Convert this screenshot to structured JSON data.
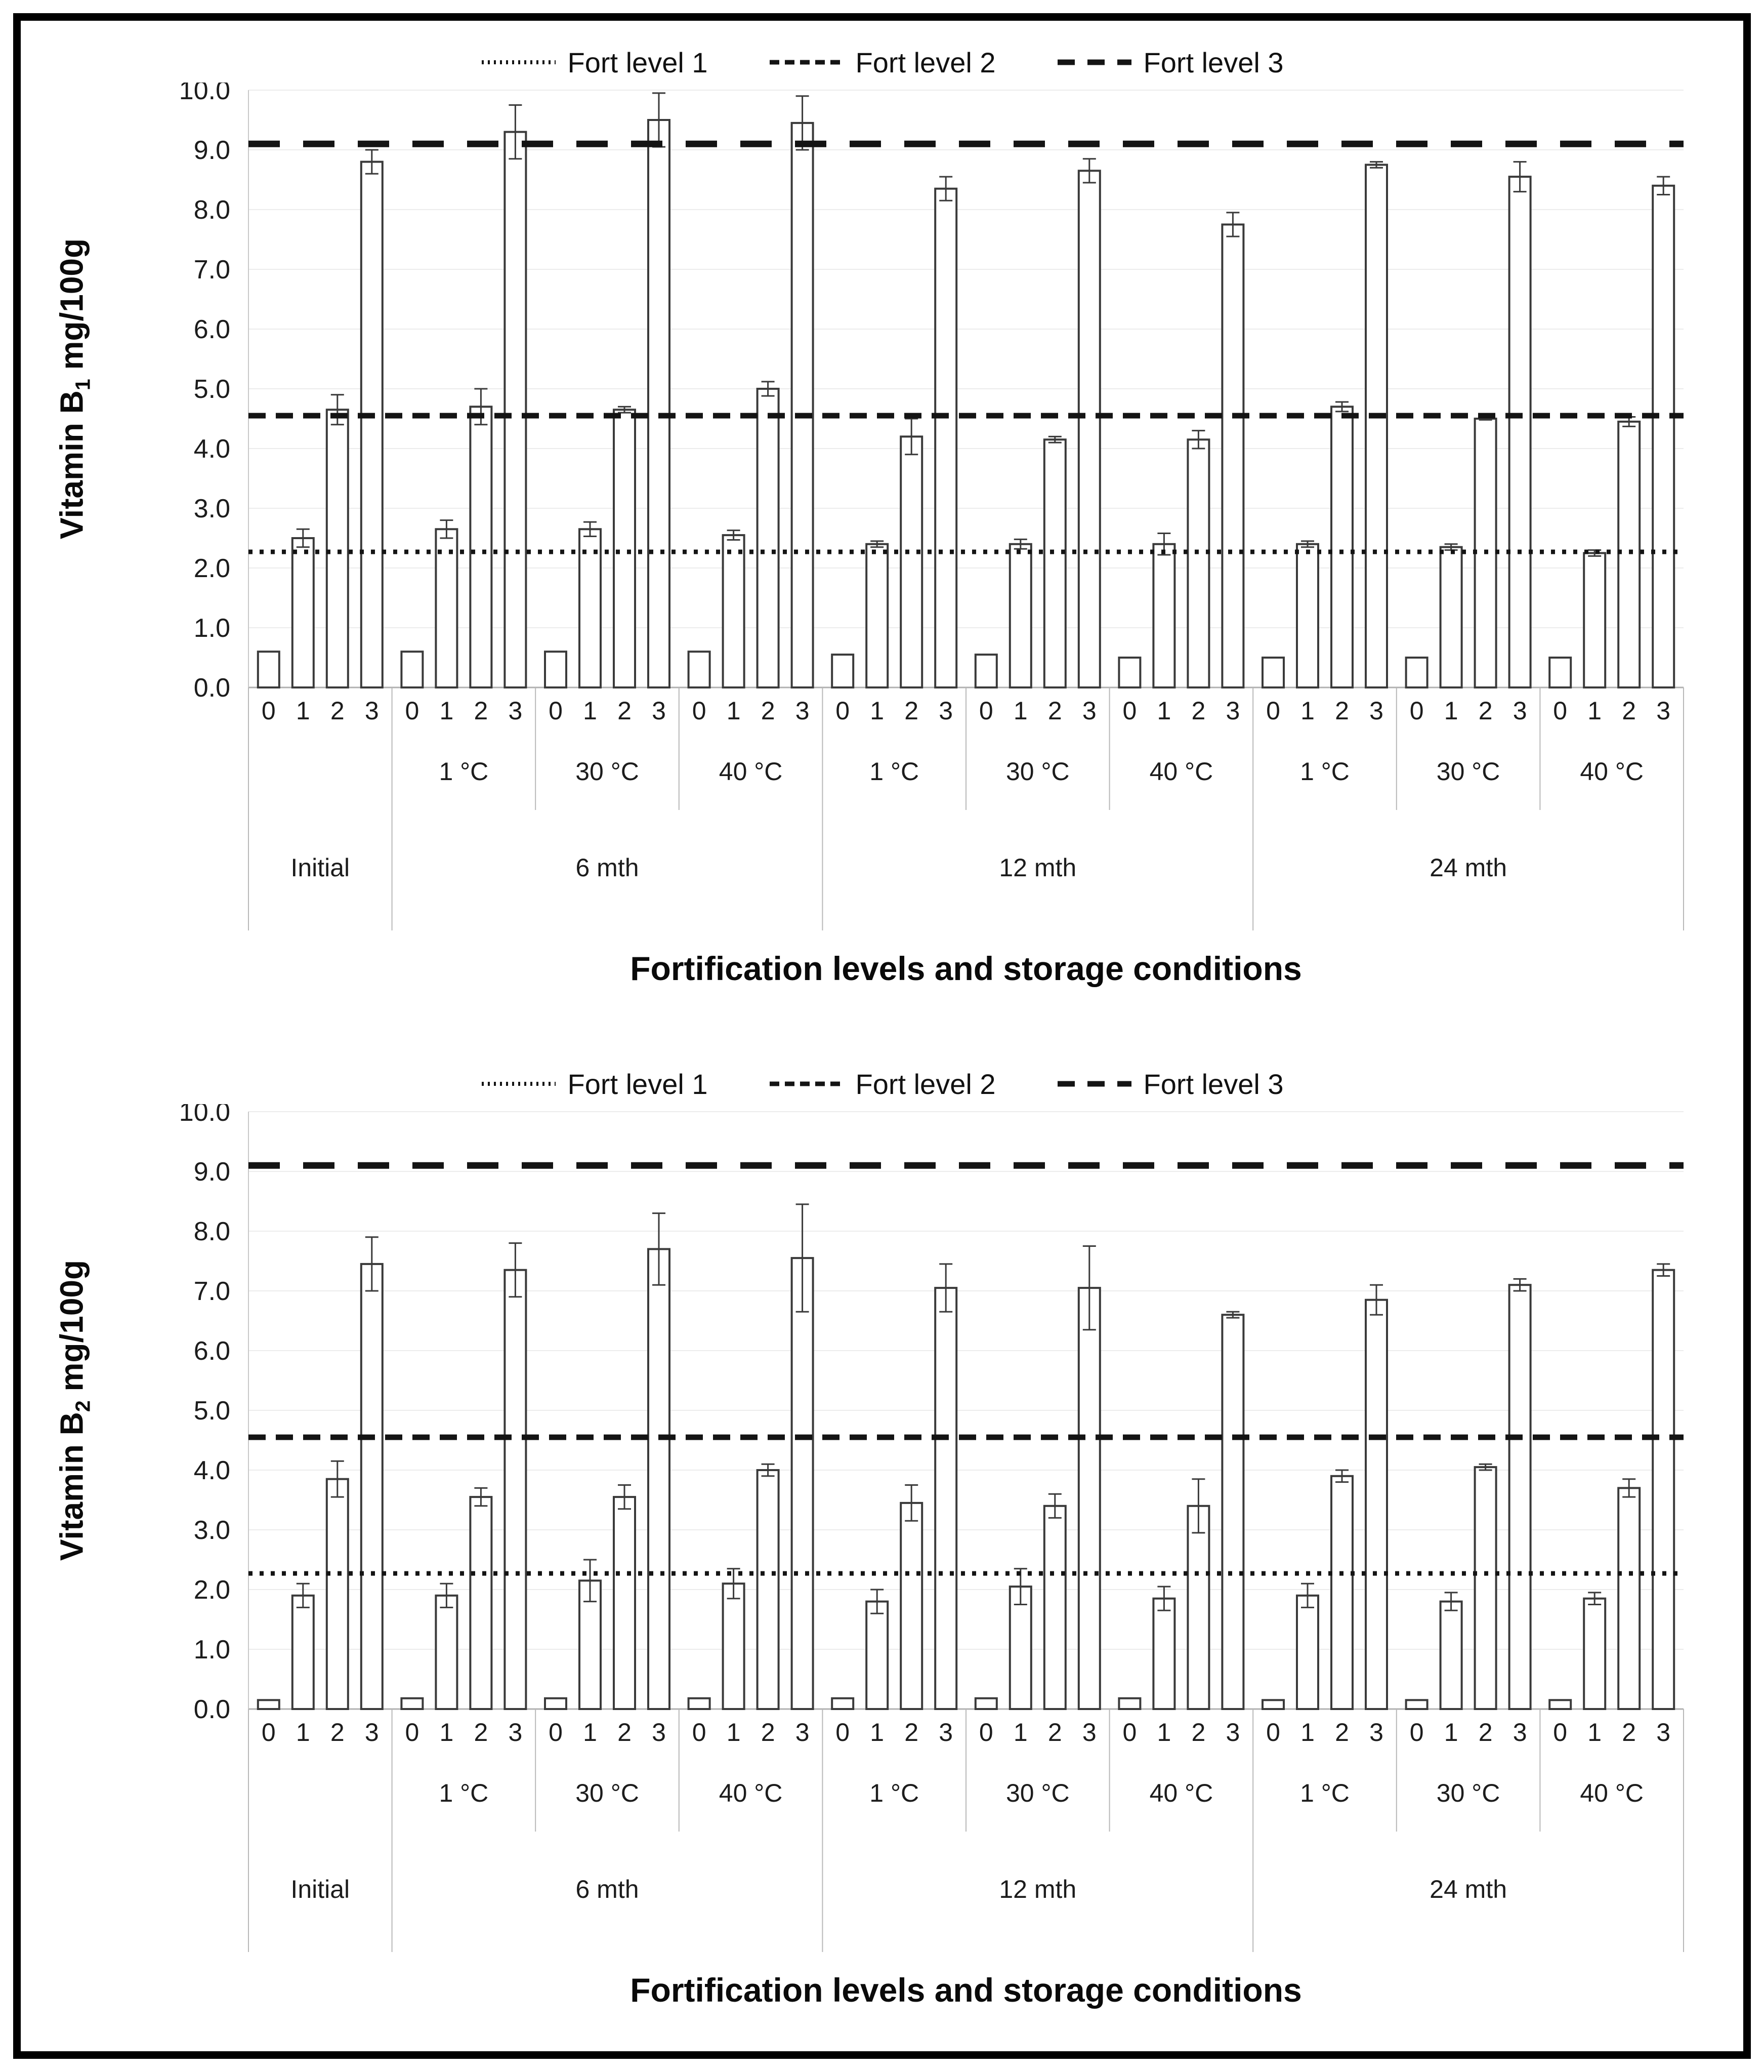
{
  "legend": {
    "items": [
      {
        "label": "Fort level 1",
        "style": "dotted"
      },
      {
        "label": "Fort level 2",
        "style": "dashed"
      },
      {
        "label": "Fort level 3",
        "style": "long-dash"
      }
    ]
  },
  "chart_data": [
    {
      "type": "bar",
      "ylabel": {
        "prefix": "Vitamin B",
        "sub": "1",
        "suffix": " mg/100g"
      },
      "xlabel": "Fortification levels and storage conditions",
      "ylim": [
        0,
        10
      ],
      "ytick_step": 1,
      "yticks": [
        "0.0",
        "1.0",
        "2.0",
        "3.0",
        "4.0",
        "5.0",
        "6.0",
        "7.0",
        "8.0",
        "9.0",
        "10.0"
      ],
      "grid": true,
      "legend_position": "top-center",
      "bar_labels": [
        "0",
        "1",
        "2",
        "3"
      ],
      "ref_lines": [
        {
          "label": "Fort level 1",
          "value": 2.27,
          "style": "dotted"
        },
        {
          "label": "Fort level 2",
          "value": 4.55,
          "style": "dashed"
        },
        {
          "label": "Fort level 3",
          "value": 9.1,
          "style": "long-dash"
        }
      ],
      "periods": [
        {
          "label": "Initial",
          "span": 1
        },
        {
          "label": "6 mth",
          "span": 3
        },
        {
          "label": "12 mth",
          "span": 3
        },
        {
          "label": "24 mth",
          "span": 3
        }
      ],
      "groups": [
        {
          "period": "Initial",
          "temp": "",
          "values": [
            0.6,
            2.5,
            4.65,
            8.8
          ],
          "errors": [
            0,
            0.15,
            0.25,
            0.2
          ]
        },
        {
          "period": "6 mth",
          "temp": "1 °C",
          "values": [
            0.6,
            2.65,
            4.7,
            9.3
          ],
          "errors": [
            0,
            0.15,
            0.3,
            0.45
          ]
        },
        {
          "period": "6 mth",
          "temp": "30 °C",
          "values": [
            0.6,
            2.65,
            4.65,
            9.5
          ],
          "errors": [
            0,
            0.12,
            0.05,
            0.45
          ]
        },
        {
          "period": "6 mth",
          "temp": "40 °C",
          "values": [
            0.6,
            2.55,
            5.0,
            9.45
          ],
          "errors": [
            0,
            0.08,
            0.12,
            0.45
          ]
        },
        {
          "period": "12 mth",
          "temp": "1 °C",
          "values": [
            0.55,
            2.4,
            4.2,
            8.35
          ],
          "errors": [
            0,
            0.05,
            0.3,
            0.2
          ]
        },
        {
          "period": "12 mth",
          "temp": "30 °C",
          "values": [
            0.55,
            2.4,
            4.15,
            8.65
          ],
          "errors": [
            0,
            0.08,
            0.05,
            0.2
          ]
        },
        {
          "period": "12 mth",
          "temp": "40 °C",
          "values": [
            0.5,
            2.4,
            4.15,
            7.75
          ],
          "errors": [
            0,
            0.18,
            0.15,
            0.2
          ]
        },
        {
          "period": "24 mth",
          "temp": "1 °C",
          "values": [
            0.5,
            2.4,
            4.7,
            8.75
          ],
          "errors": [
            0,
            0.05,
            0.08,
            0.05
          ]
        },
        {
          "period": "24 mth",
          "temp": "30 °C",
          "values": [
            0.5,
            2.35,
            4.5,
            8.55
          ],
          "errors": [
            0,
            0.05,
            0.02,
            0.25
          ]
        },
        {
          "period": "24 mth",
          "temp": "40 °C",
          "values": [
            0.5,
            2.25,
            4.45,
            8.4
          ],
          "errors": [
            0,
            0.05,
            0.08,
            0.15
          ]
        }
      ]
    },
    {
      "type": "bar",
      "ylabel": {
        "prefix": "Vitamin B",
        "sub": "2",
        "suffix": " mg/100g"
      },
      "xlabel": "Fortification levels and storage conditions",
      "ylim": [
        0,
        10
      ],
      "ytick_step": 1,
      "yticks": [
        "0.0",
        "1.0",
        "2.0",
        "3.0",
        "4.0",
        "5.0",
        "6.0",
        "7.0",
        "8.0",
        "9.0",
        "10.0"
      ],
      "grid": true,
      "legend_position": "top-center",
      "bar_labels": [
        "0",
        "1",
        "2",
        "3"
      ],
      "ref_lines": [
        {
          "label": "Fort level 1",
          "value": 2.27,
          "style": "dotted"
        },
        {
          "label": "Fort level 2",
          "value": 4.55,
          "style": "dashed"
        },
        {
          "label": "Fort level 3",
          "value": 9.1,
          "style": "long-dash"
        }
      ],
      "periods": [
        {
          "label": "Initial",
          "span": 1
        },
        {
          "label": "6 mth",
          "span": 3
        },
        {
          "label": "12 mth",
          "span": 3
        },
        {
          "label": "24 mth",
          "span": 3
        }
      ],
      "groups": [
        {
          "period": "Initial",
          "temp": "",
          "values": [
            0.15,
            1.9,
            3.85,
            7.45
          ],
          "errors": [
            0,
            0.2,
            0.3,
            0.45
          ]
        },
        {
          "period": "6 mth",
          "temp": "1 °C",
          "values": [
            0.18,
            1.9,
            3.55,
            7.35
          ],
          "errors": [
            0,
            0.2,
            0.15,
            0.45
          ]
        },
        {
          "period": "6 mth",
          "temp": "30 °C",
          "values": [
            0.18,
            2.15,
            3.55,
            7.7
          ],
          "errors": [
            0,
            0.35,
            0.2,
            0.6
          ]
        },
        {
          "period": "6 mth",
          "temp": "40 °C",
          "values": [
            0.18,
            2.1,
            4.0,
            7.55
          ],
          "errors": [
            0,
            0.25,
            0.1,
            0.9
          ]
        },
        {
          "period": "12 mth",
          "temp": "1 °C",
          "values": [
            0.18,
            1.8,
            3.45,
            7.05
          ],
          "errors": [
            0,
            0.2,
            0.3,
            0.4
          ]
        },
        {
          "period": "12 mth",
          "temp": "30 °C",
          "values": [
            0.18,
            2.05,
            3.4,
            7.05
          ],
          "errors": [
            0,
            0.3,
            0.2,
            0.7
          ]
        },
        {
          "period": "12 mth",
          "temp": "40 °C",
          "values": [
            0.18,
            1.85,
            3.4,
            6.6
          ],
          "errors": [
            0,
            0.2,
            0.45,
            0.05
          ]
        },
        {
          "period": "24 mth",
          "temp": "1 °C",
          "values": [
            0.15,
            1.9,
            3.9,
            6.85
          ],
          "errors": [
            0,
            0.2,
            0.1,
            0.25
          ]
        },
        {
          "period": "24 mth",
          "temp": "30 °C",
          "values": [
            0.15,
            1.8,
            4.05,
            7.1
          ],
          "errors": [
            0,
            0.15,
            0.05,
            0.1
          ]
        },
        {
          "period": "24 mth",
          "temp": "40 °C",
          "values": [
            0.15,
            1.85,
            3.7,
            7.35
          ],
          "errors": [
            0,
            0.1,
            0.15,
            0.1
          ]
        }
      ]
    }
  ],
  "colors": {
    "bar_fill": "#ffffff",
    "bar_stroke": "#3a3a3a",
    "ref_line": "#141414",
    "gridline": "#ececec",
    "axis_line": "#b0b0b0"
  }
}
